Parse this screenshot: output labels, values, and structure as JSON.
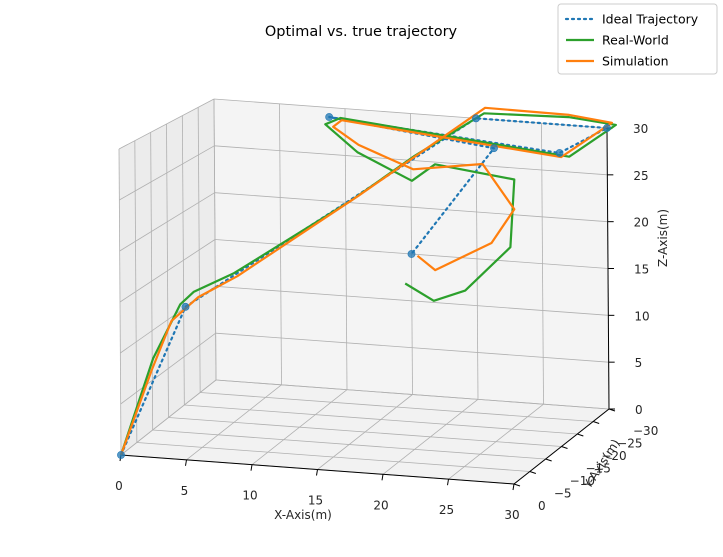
{
  "chart_data": {
    "type": "line3d",
    "title": "Optimal vs. true trajectory",
    "xlabel": "X-Axis(m)",
    "ylabel": "Y-Axis(m)",
    "zlabel": "Z-Axis(m)",
    "xlim": [
      0,
      30
    ],
    "ylim": [
      0,
      -30
    ],
    "zlim": [
      0,
      30
    ],
    "x_ticks": [
      0,
      5,
      10,
      15,
      20,
      25,
      30
    ],
    "y_ticks": [
      0,
      -5,
      -10,
      -15,
      -20,
      -25,
      -30
    ],
    "z_ticks": [
      0,
      5,
      10,
      15,
      20,
      25,
      30
    ],
    "x_tick_labels": [
      "0",
      "5",
      "10",
      "15",
      "20",
      "25",
      "30"
    ],
    "y_tick_labels": [
      "0",
      "−5",
      "−10",
      "−15",
      "−20",
      "−25",
      "−30"
    ],
    "z_tick_labels": [
      "0",
      "5",
      "10",
      "15",
      "20",
      "25",
      "30"
    ],
    "grid": true,
    "legend_position": "top-right",
    "waypoints": [
      {
        "x": 0,
        "y": 0,
        "z": 0
      },
      {
        "x": 5,
        "y": 0,
        "z": 15
      },
      {
        "x": 20,
        "y": -30,
        "z": 30
      },
      {
        "x": 30,
        "y": -30,
        "z": 30
      },
      {
        "x": 30,
        "y": -15,
        "z": 30
      },
      {
        "x": 10,
        "y": -25,
        "z": 30
      },
      {
        "x": 25,
        "y": -15,
        "z": 30
      },
      {
        "x": 15,
        "y": -30,
        "z": 15
      }
    ],
    "series": [
      {
        "name": "Ideal Trajectory",
        "color": "#1f77b4",
        "style": "dotted",
        "x": [
          0,
          5,
          20,
          30,
          30,
          10,
          25,
          15
        ],
        "y": [
          0,
          0,
          -30,
          -30,
          -15,
          -25,
          -15,
          -30
        ],
        "z": [
          0,
          15,
          30,
          30,
          30,
          30,
          30,
          15
        ]
      },
      {
        "name": "Real-World",
        "color": "#2ca02c",
        "style": "solid",
        "x": [
          0,
          2.5,
          4.7,
          5.6,
          8,
          14,
          17,
          20.5,
          27,
          30.8,
          30.5,
          11,
          9.7,
          12.4,
          17.5,
          20,
          26,
          26.2,
          22,
          18.5,
          14.5
        ],
        "y": [
          0,
          0,
          0.4,
          -0.2,
          -3,
          -15,
          -23,
          -30.5,
          -30.3,
          -29.5,
          -16,
          -24.4,
          -25,
          -24,
          -20,
          -17,
          -17.2,
          -15,
          -18,
          -22.5,
          -30
        ],
        "z": [
          0,
          9.7,
          15.3,
          16.5,
          18,
          23.5,
          27,
          30.5,
          30.8,
          30.5,
          29.5,
          30.1,
          29.2,
          26.7,
          25,
          27.5,
          26.5,
          20,
          14.5,
          12.1,
          11.8
        ]
      },
      {
        "name": "Simulation",
        "color": "#ff7f0e",
        "style": "solid",
        "x": [
          0,
          2.4,
          3.8,
          5.5,
          8,
          14.5,
          20.7,
          27,
          30.5,
          30,
          11,
          10.3,
          12.6,
          17.6,
          24,
          26.4,
          25,
          18.5,
          15.6
        ],
        "y": [
          0,
          0,
          -0.5,
          -2,
          -4,
          -15.5,
          -30,
          -30.5,
          -29.5,
          -15.5,
          -24.8,
          -25,
          -23.5,
          -20,
          -15.5,
          -15.5,
          -14,
          -23,
          -29.4
        ],
        "z": [
          0,
          8.6,
          13.4,
          15.6,
          17.5,
          24,
          31.2,
          31,
          30.7,
          29.5,
          29.8,
          29,
          27.6,
          26.2,
          28.2,
          23.8,
          20.5,
          15.2,
          15
        ]
      }
    ]
  }
}
